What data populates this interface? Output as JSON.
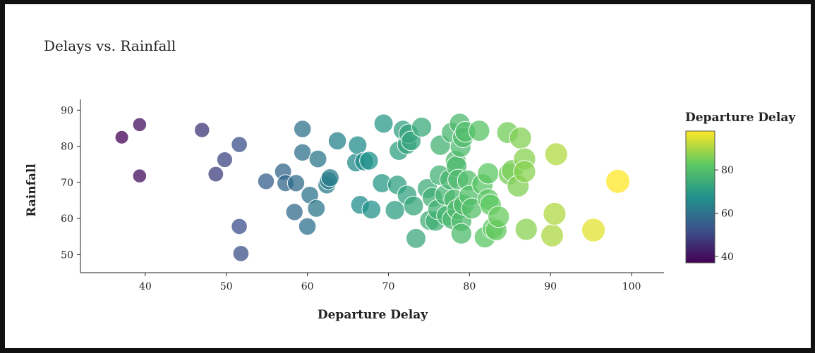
{
  "chart_data": {
    "type": "scatter",
    "title": "Delays vs. Rainfall",
    "xlabel": "Departure Delay",
    "ylabel": "Rainfall",
    "xlim": [
      32,
      104
    ],
    "ylim": [
      45,
      93
    ],
    "xticks": [
      40,
      50,
      60,
      70,
      80,
      90,
      100
    ],
    "yticks": [
      50,
      60,
      70,
      80,
      90
    ],
    "grid": false,
    "color_encoding": "Departure Delay",
    "size_encoding": "Departure Delay",
    "colorbar": {
      "title": "Departure Delay",
      "range": [
        37,
        98
      ],
      "ticks": [
        40,
        60,
        80
      ],
      "colors": [
        "#440154",
        "#3b528b",
        "#21918c",
        "#5ec962",
        "#fde725"
      ],
      "position": "right"
    },
    "points": [
      {
        "x": 37.1,
        "y": 82.5
      },
      {
        "x": 39.3,
        "y": 86.0
      },
      {
        "x": 39.3,
        "y": 71.8
      },
      {
        "x": 47.0,
        "y": 84.5
      },
      {
        "x": 48.7,
        "y": 72.3
      },
      {
        "x": 49.8,
        "y": 76.3
      },
      {
        "x": 51.6,
        "y": 80.5
      },
      {
        "x": 51.6,
        "y": 57.8
      },
      {
        "x": 51.8,
        "y": 50.3
      },
      {
        "x": 54.9,
        "y": 70.3
      },
      {
        "x": 57.0,
        "y": 73.0
      },
      {
        "x": 57.3,
        "y": 69.8
      },
      {
        "x": 58.6,
        "y": 69.8
      },
      {
        "x": 58.4,
        "y": 61.8
      },
      {
        "x": 59.4,
        "y": 84.8
      },
      {
        "x": 59.4,
        "y": 78.3
      },
      {
        "x": 60.0,
        "y": 57.8
      },
      {
        "x": 60.3,
        "y": 66.5
      },
      {
        "x": 61.1,
        "y": 62.8
      },
      {
        "x": 61.3,
        "y": 76.5
      },
      {
        "x": 62.4,
        "y": 69.3
      },
      {
        "x": 62.6,
        "y": 70.5
      },
      {
        "x": 62.8,
        "y": 71.3
      },
      {
        "x": 63.7,
        "y": 81.5
      },
      {
        "x": 66.0,
        "y": 75.5
      },
      {
        "x": 66.2,
        "y": 80.3
      },
      {
        "x": 66.5,
        "y": 63.8
      },
      {
        "x": 67.0,
        "y": 75.8
      },
      {
        "x": 67.6,
        "y": 76.0
      },
      {
        "x": 67.9,
        "y": 62.5
      },
      {
        "x": 69.2,
        "y": 69.8
      },
      {
        "x": 69.4,
        "y": 86.3
      },
      {
        "x": 70.8,
        "y": 62.3
      },
      {
        "x": 71.1,
        "y": 69.3
      },
      {
        "x": 71.3,
        "y": 78.8
      },
      {
        "x": 71.8,
        "y": 84.5
      },
      {
        "x": 72.3,
        "y": 80.5
      },
      {
        "x": 72.3,
        "y": 66.5
      },
      {
        "x": 72.5,
        "y": 83.5
      },
      {
        "x": 72.8,
        "y": 81.5
      },
      {
        "x": 73.1,
        "y": 63.5
      },
      {
        "x": 73.4,
        "y": 54.5
      },
      {
        "x": 74.1,
        "y": 85.3
      },
      {
        "x": 74.8,
        "y": 68.3
      },
      {
        "x": 75.1,
        "y": 59.5
      },
      {
        "x": 75.4,
        "y": 65.8
      },
      {
        "x": 75.8,
        "y": 59.3
      },
      {
        "x": 76.1,
        "y": 62.5
      },
      {
        "x": 76.3,
        "y": 72.0
      },
      {
        "x": 76.4,
        "y": 80.3
      },
      {
        "x": 77.0,
        "y": 66.5
      },
      {
        "x": 77.2,
        "y": 60.8
      },
      {
        "x": 77.6,
        "y": 70.8
      },
      {
        "x": 77.8,
        "y": 83.8
      },
      {
        "x": 77.9,
        "y": 59.8
      },
      {
        "x": 78.1,
        "y": 65.3
      },
      {
        "x": 78.3,
        "y": 76.0
      },
      {
        "x": 78.4,
        "y": 74.5
      },
      {
        "x": 78.5,
        "y": 62.5
      },
      {
        "x": 78.6,
        "y": 70.8
      },
      {
        "x": 78.8,
        "y": 86.3
      },
      {
        "x": 78.9,
        "y": 79.8
      },
      {
        "x": 79.0,
        "y": 59.3
      },
      {
        "x": 79.0,
        "y": 55.8
      },
      {
        "x": 79.2,
        "y": 82.5
      },
      {
        "x": 79.3,
        "y": 63.8
      },
      {
        "x": 79.5,
        "y": 84.0
      },
      {
        "x": 79.8,
        "y": 70.5
      },
      {
        "x": 80.0,
        "y": 66.3
      },
      {
        "x": 80.3,
        "y": 62.8
      },
      {
        "x": 81.2,
        "y": 84.3
      },
      {
        "x": 81.6,
        "y": 69.5
      },
      {
        "x": 81.9,
        "y": 54.8
      },
      {
        "x": 82.3,
        "y": 72.5
      },
      {
        "x": 82.3,
        "y": 65.3
      },
      {
        "x": 82.6,
        "y": 63.8
      },
      {
        "x": 82.9,
        "y": 57.3
      },
      {
        "x": 83.3,
        "y": 56.8
      },
      {
        "x": 83.6,
        "y": 60.5
      },
      {
        "x": 84.7,
        "y": 83.8
      },
      {
        "x": 84.9,
        "y": 72.3
      },
      {
        "x": 85.3,
        "y": 73.3
      },
      {
        "x": 86.0,
        "y": 69.0
      },
      {
        "x": 86.3,
        "y": 82.3
      },
      {
        "x": 86.8,
        "y": 76.5
      },
      {
        "x": 86.8,
        "y": 73.0
      },
      {
        "x": 87.0,
        "y": 57.0
      },
      {
        "x": 90.2,
        "y": 55.3
      },
      {
        "x": 90.5,
        "y": 61.3
      },
      {
        "x": 90.7,
        "y": 77.8
      },
      {
        "x": 95.3,
        "y": 56.8
      },
      {
        "x": 98.3,
        "y": 70.3
      }
    ]
  }
}
